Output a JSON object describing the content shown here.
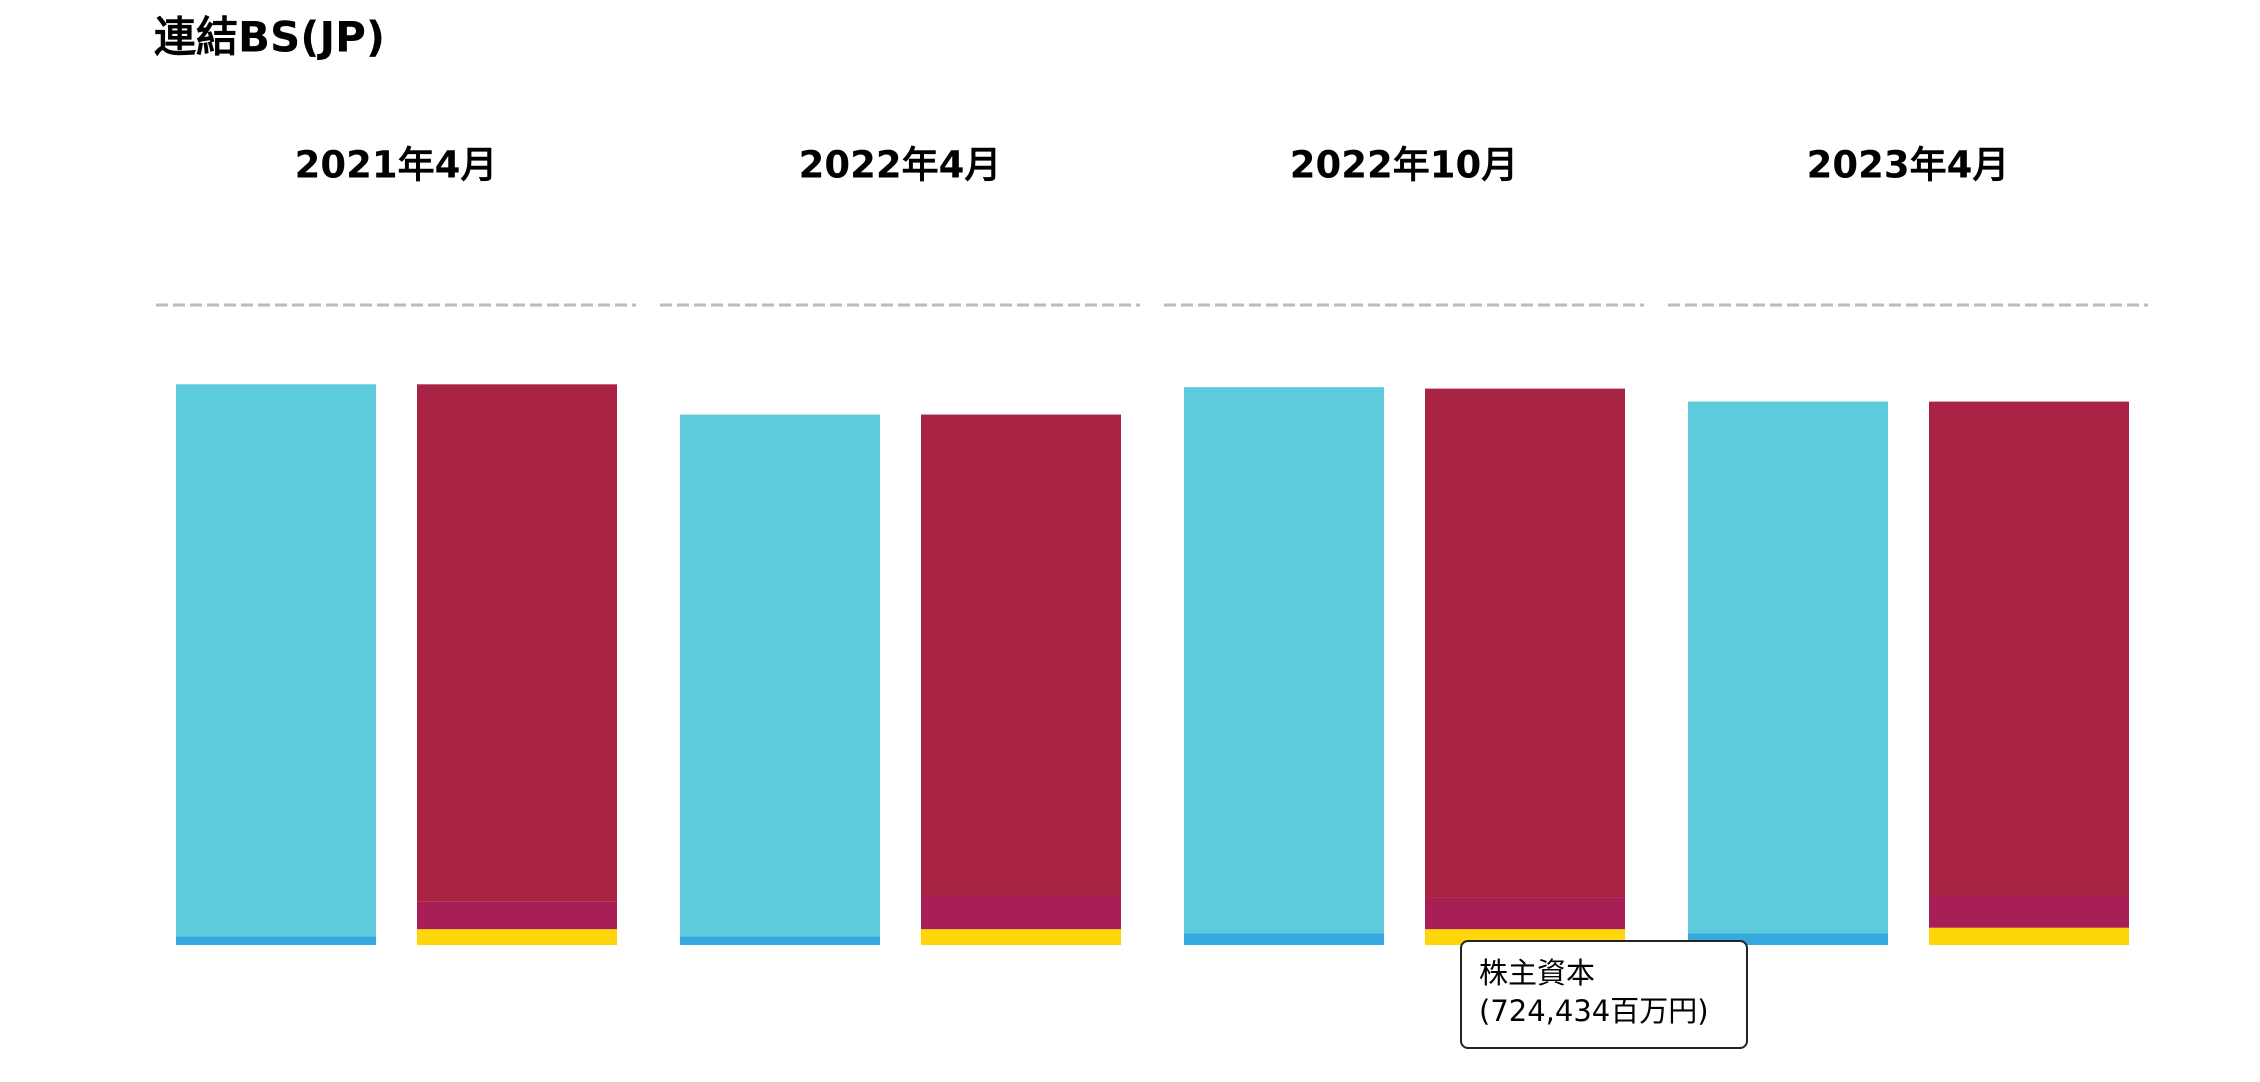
{
  "chart_data": {
    "type": "stacked_bar",
    "title": "連結BS(JP)",
    "categories": [
      "2021年4月",
      "2022年4月",
      "2022年10月",
      "2023年4月"
    ],
    "ylim": [
      0,
      29241000
    ],
    "series": [
      {
        "stack": 0,
        "color": "#35a9e0",
        "values": [
          395000,
          395000,
          527000,
          527000
        ]
      },
      {
        "stack": 0,
        "color": "#5ecbdc",
        "values": [
          25224000,
          23840000,
          24960000,
          24302000
        ]
      },
      {
        "stack": 1,
        "name": "株主資本",
        "color": "#ffd60a",
        "values": [
          724000,
          724000,
          724434,
          790000
        ],
        "value_labels": [
          null,
          null,
          "(724,434百万円)",
          null
        ]
      },
      {
        "stack": 1,
        "color": "#a81f55",
        "values": [
          1251000,
          1515000,
          1449000,
          1449000
        ]
      },
      {
        "stack": 1,
        "color": "#a82344",
        "values": [
          23643000,
          21997000,
          23248000,
          22589000
        ]
      }
    ]
  }
}
